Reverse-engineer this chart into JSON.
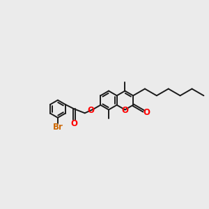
{
  "bg_color": "#ebebeb",
  "bond_color": "#1a1a1a",
  "bond_width": 1.4,
  "o_color": "#ff0000",
  "br_color": "#cc6600",
  "font_size": 8.5,
  "fig_width": 3.0,
  "fig_height": 3.0,
  "dpi": 100,
  "xlim": [
    0,
    10
  ],
  "ylim": [
    2.5,
    7.5
  ]
}
